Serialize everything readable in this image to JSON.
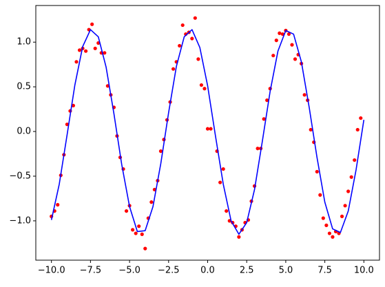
{
  "chart_data": {
    "type": "scatter",
    "xlim": [
      -11,
      11
    ],
    "ylim": [
      -1.44,
      1.41
    ],
    "xticks": [
      {
        "value": -10,
        "label": "−10.0"
      },
      {
        "value": -7.5,
        "label": "−7.5"
      },
      {
        "value": -5,
        "label": "−5.0"
      },
      {
        "value": -2.5,
        "label": "−2.5"
      },
      {
        "value": 0,
        "label": "0.0"
      },
      {
        "value": 2.5,
        "label": "2.5"
      },
      {
        "value": 5,
        "label": "5.0"
      },
      {
        "value": 7.5,
        "label": "7.5"
      },
      {
        "value": 10,
        "label": "10.0"
      }
    ],
    "yticks": [
      {
        "value": -1,
        "label": "−1.0"
      },
      {
        "value": -0.5,
        "label": "−0.5"
      },
      {
        "value": 0,
        "label": "0.0"
      },
      {
        "value": 0.5,
        "label": "0.5"
      },
      {
        "value": 1,
        "label": "1.0"
      }
    ],
    "series": [
      {
        "color": "#ff0000",
        "marker": "dot",
        "x": [
          -10,
          -9.8,
          -9.6,
          -9.4,
          -9.2,
          -9.0,
          -8.8,
          -8.6,
          -8.4,
          -8.2,
          -8.0,
          -7.8,
          -7.6,
          -7.4,
          -7.2,
          -7.0,
          -6.8,
          -6.6,
          -6.4,
          -6.2,
          -6.0,
          -5.8,
          -5.6,
          -5.4,
          -5.2,
          -5.0,
          -4.8,
          -4.6,
          -4.4,
          -4.2,
          -4.0,
          -3.8,
          -3.6,
          -3.4,
          -3.2,
          -3.0,
          -2.8,
          -2.6,
          -2.4,
          -2.2,
          -2.0,
          -1.8,
          -1.6,
          -1.4,
          -1.2,
          -1.0,
          -0.8,
          -0.6,
          -0.4,
          -0.2,
          0.0,
          0.2,
          0.6,
          0.8,
          1.0,
          1.2,
          1.4,
          1.6,
          1.8,
          2.0,
          2.2,
          2.4,
          2.6,
          2.8,
          3.0,
          3.2,
          3.4,
          3.6,
          3.8,
          4.0,
          4.2,
          4.4,
          4.6,
          4.8,
          5.0,
          5.2,
          5.4,
          5.6,
          5.8,
          6.0,
          6.2,
          6.4,
          6.6,
          6.8,
          7.0,
          7.2,
          7.4,
          7.6,
          7.8,
          8.0,
          8.2,
          8.4,
          8.6,
          8.8,
          9.0,
          9.2,
          9.4,
          9.6,
          9.8
        ],
        "values": [
          -0.95,
          -0.89,
          -0.82,
          -0.49,
          -0.26,
          0.08,
          0.23,
          0.29,
          0.78,
          0.91,
          0.93,
          0.9,
          1.14,
          1.2,
          0.93,
          0.99,
          0.88,
          0.88,
          0.51,
          0.41,
          0.27,
          -0.05,
          -0.29,
          -0.42,
          -0.89,
          -0.83,
          -1.1,
          -1.14,
          -1.06,
          -1.15,
          -1.31,
          -0.97,
          -0.79,
          -0.65,
          -0.55,
          -0.22,
          -0.09,
          0.13,
          0.33,
          0.7,
          0.78,
          0.96,
          1.19,
          1.09,
          1.11,
          1.04,
          1.27,
          0.81,
          0.52,
          0.48,
          0.03,
          0.03,
          -0.22,
          -0.57,
          -0.42,
          -0.89,
          -1.0,
          -1.02,
          -1.06,
          -1.18,
          -1.1,
          -1.02,
          -0.99,
          -0.78,
          -0.61,
          -0.19,
          -0.19,
          0.14,
          0.35,
          0.48,
          0.85,
          1.02,
          1.1,
          1.09,
          1.13,
          1.09,
          0.97,
          0.81,
          0.86,
          0.76,
          0.41,
          0.35,
          0.02,
          -0.12,
          -0.45,
          -0.71,
          -0.97,
          -1.05,
          -1.14,
          -1.18,
          -1.12,
          -1.14,
          -0.95,
          -0.83,
          -0.67,
          -0.51,
          -0.32,
          0.02,
          0.15
        ]
      },
      {
        "color": "#0000ff",
        "marker": "line",
        "x": [
          -10,
          -9.5,
          -9,
          -8.5,
          -8,
          -7.5,
          -7,
          -6.5,
          -6,
          -5.5,
          -5,
          -4.5,
          -4,
          -3.5,
          -3,
          -2.5,
          -2,
          -1.5,
          -1,
          -0.5,
          0,
          0.5,
          1,
          1.5,
          2,
          2.5,
          3,
          3.5,
          4,
          4.5,
          5,
          5.5,
          6,
          6.5,
          7,
          7.5,
          8,
          8.5,
          9,
          9.5,
          10
        ],
        "values": [
          -0.99,
          -0.59,
          -0.04,
          0.52,
          0.95,
          1.14,
          1.06,
          0.72,
          0.2,
          -0.37,
          -0.84,
          -1.12,
          -1.11,
          -0.84,
          -0.36,
          0.21,
          0.73,
          1.06,
          1.14,
          0.94,
          0.51,
          -0.05,
          -0.59,
          -1.0,
          -1.15,
          -1.02,
          -0.65,
          -0.11,
          0.45,
          0.9,
          1.13,
          1.09,
          0.78,
          0.27,
          -0.29,
          -0.79,
          -1.09,
          -1.13,
          -0.89,
          -0.43,
          0.13
        ]
      }
    ]
  }
}
